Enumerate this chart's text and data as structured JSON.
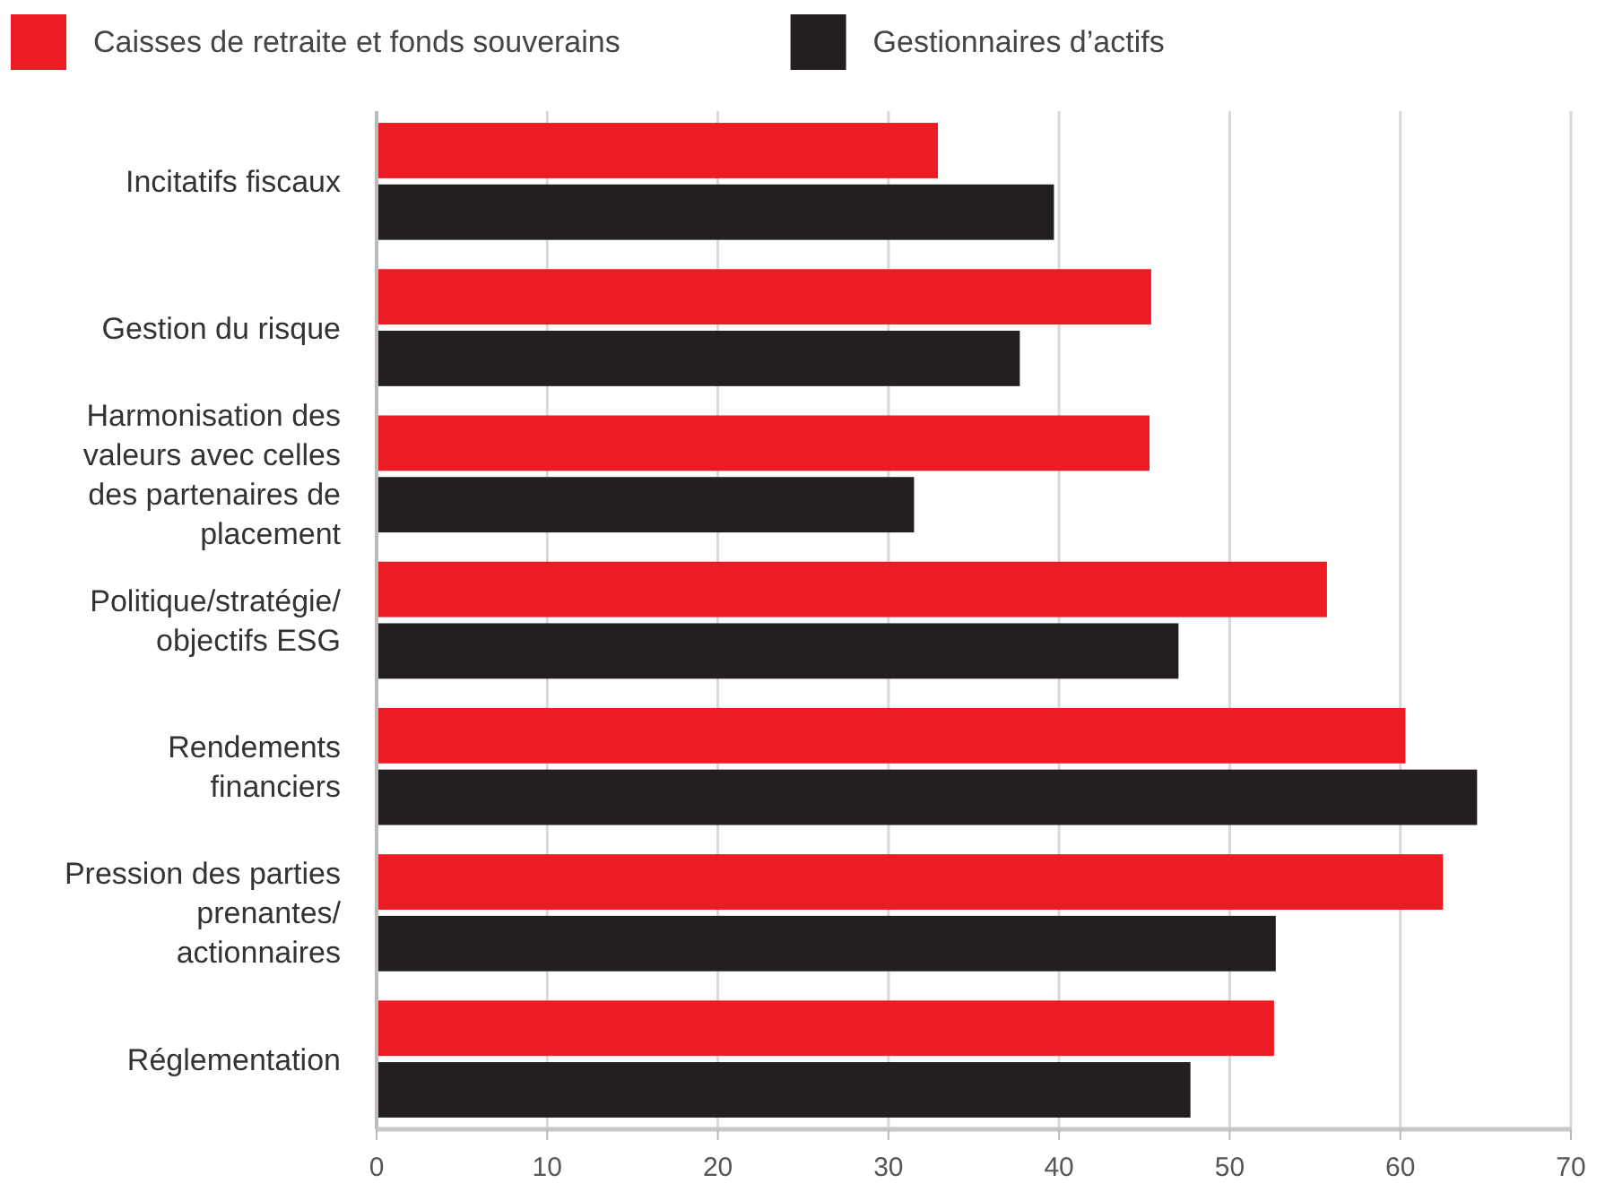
{
  "chart_data": {
    "type": "bar",
    "orientation": "horizontal",
    "categories": [
      "Incitatifs fiscaux",
      "Gestion du risque",
      "Harmonisation des valeurs avec celles des partenaires de placement",
      "Politique/stratégie/objectifs ESG",
      "Rendements financiers",
      "Pression des parties prenantes/actionnaires",
      "Réglementation"
    ],
    "series": [
      {
        "name": "Caisses de retraite et fonds souverains",
        "color": "#ed1c24",
        "values": [
          32.9,
          45.4,
          45.3,
          55.7,
          60.3,
          62.5,
          52.6
        ]
      },
      {
        "name": "Gestionnaires d’actifs",
        "color": "#231f20",
        "values": [
          39.7,
          37.7,
          31.5,
          47.0,
          64.5,
          52.7,
          47.7
        ]
      }
    ],
    "xlim": [
      0,
      70
    ],
    "xticks": [
      0,
      10,
      20,
      30,
      40,
      50,
      60,
      70
    ],
    "grid": "x",
    "legend": "top left"
  }
}
